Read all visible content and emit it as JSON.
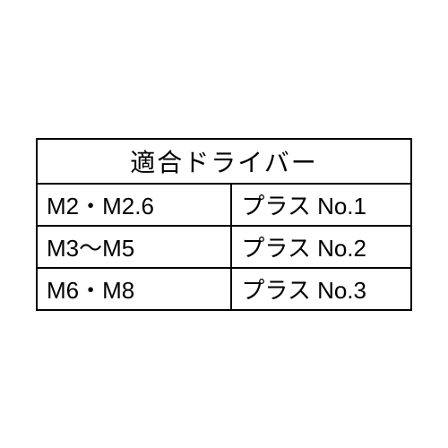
{
  "table": {
    "type": "table",
    "header": "適合ドライバー",
    "header_fontsize": 28,
    "cell_fontsize": 26,
    "border_color": "#000000",
    "background_color": "#ffffff",
    "text_color": "#000000",
    "columns": [
      "screw_size",
      "driver"
    ],
    "column_widths": [
      "52%",
      "48%"
    ],
    "rows": [
      {
        "screw_size": "M2・M2.6",
        "driver": "プラス No.1"
      },
      {
        "screw_size": "M3〜M5",
        "driver": "プラス No.2"
      },
      {
        "screw_size": "M6・M8",
        "driver": "プラス No.3"
      }
    ]
  }
}
